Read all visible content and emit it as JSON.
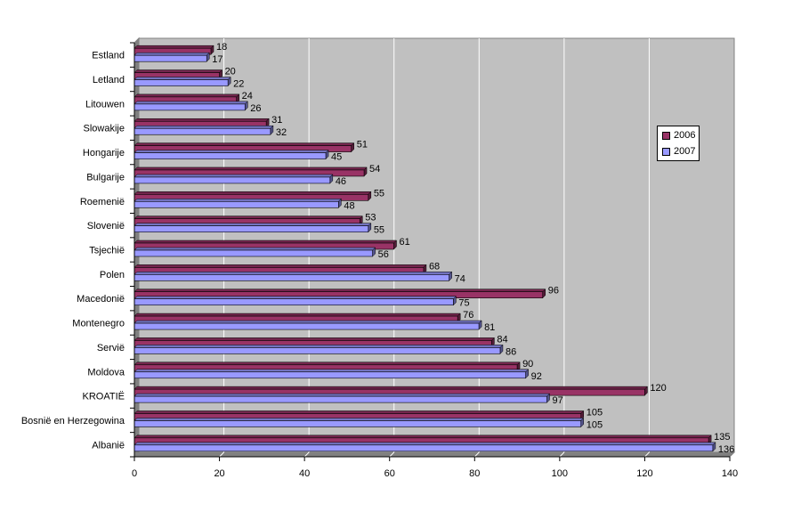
{
  "chart_data": {
    "type": "bar",
    "orientation": "horizontal",
    "categories": [
      "Albanië",
      "Bosnië en Herzegowina",
      "KROATIË",
      "Moldova",
      "Servië",
      "Montenegro",
      "Macedonië",
      "Polen",
      "Tsjechië",
      "Slovenië",
      "Roemenië",
      "Bulgarije",
      "Hongarije",
      "Slowakije",
      "Litouwen",
      "Letland",
      "Estland"
    ],
    "series": [
      {
        "name": "2006",
        "color": "#993366",
        "values": [
          135,
          105,
          120,
          90,
          84,
          76,
          96,
          68,
          61,
          53,
          55,
          54,
          51,
          31,
          24,
          20,
          18
        ]
      },
      {
        "name": "2007",
        "color": "#9999ff",
        "values": [
          136,
          105,
          97,
          92,
          86,
          81,
          75,
          74,
          56,
          55,
          48,
          46,
          45,
          32,
          26,
          22,
          17
        ]
      }
    ],
    "xlim": [
      0,
      140
    ],
    "xticks": [
      0,
      20,
      40,
      60,
      80,
      100,
      120,
      140
    ],
    "grid": true,
    "legend": "right",
    "plot_background": "#c0c0c0",
    "title": "",
    "xlabel": "",
    "ylabel": ""
  }
}
